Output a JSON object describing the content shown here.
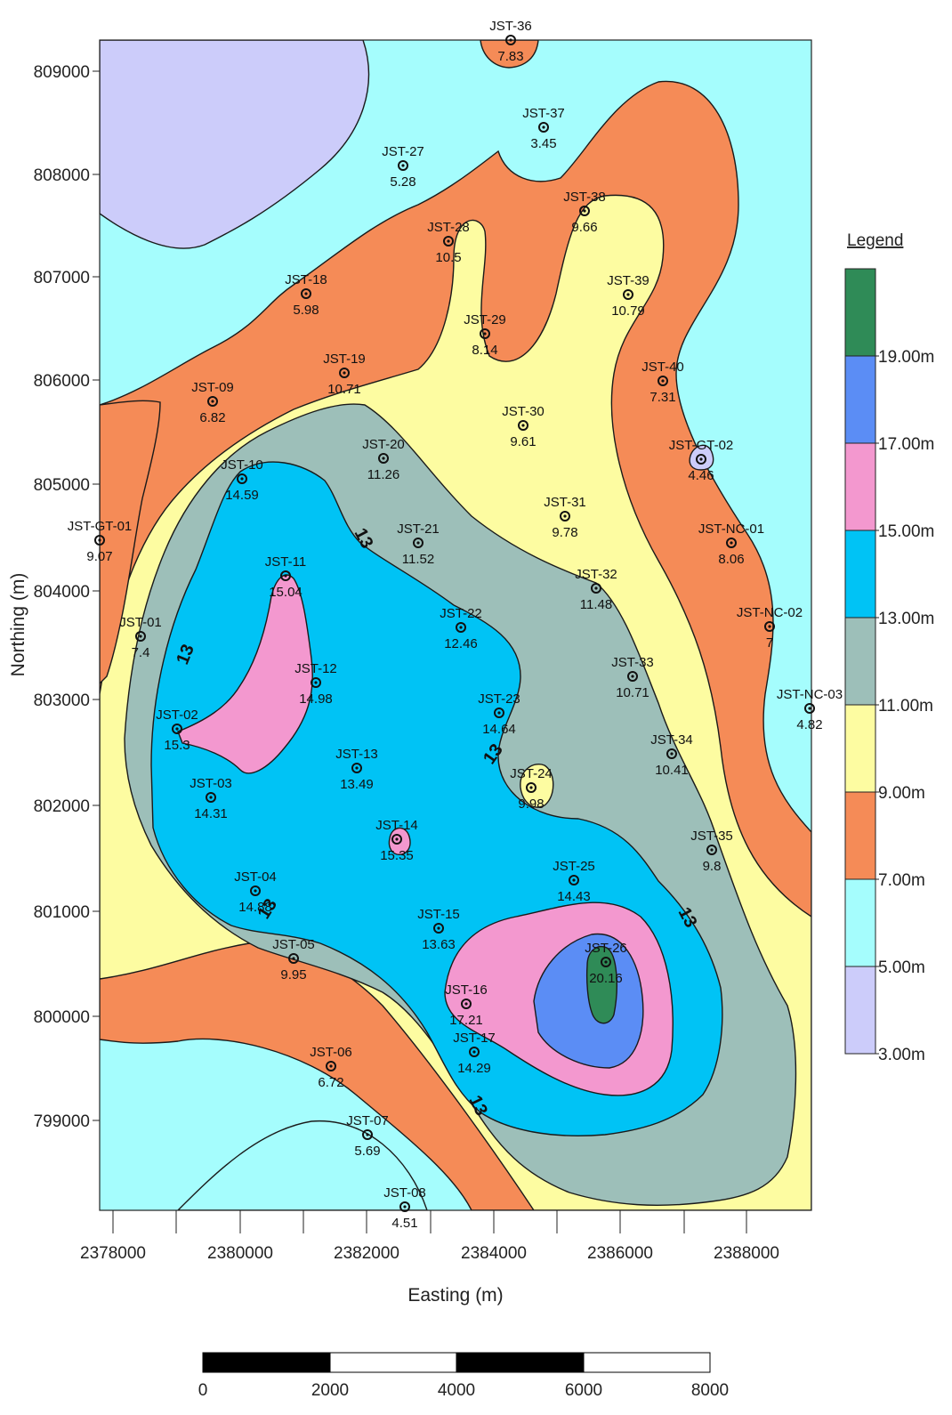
{
  "map": {
    "xlabel": "Easting (m)",
    "ylabel": "Northing (m)",
    "x_ticks": [
      "2378000",
      "2380000",
      "2382000",
      "2384000",
      "2386000",
      "2388000"
    ],
    "y_ticks": [
      "809000",
      "808000",
      "807000",
      "806000",
      "805000",
      "804000",
      "803000",
      "802000",
      "801000",
      "800000",
      "799000"
    ],
    "contour_labels": [
      "13",
      "13",
      "13",
      "13",
      "13",
      "13"
    ]
  },
  "legend": {
    "title": "Legend",
    "levels": [
      "19.00m",
      "17.00m",
      "15.00m",
      "13.00m",
      "11.00m",
      "9.00m",
      "7.00m",
      "5.00m",
      "3.00m"
    ],
    "colors": [
      "#2f8b57",
      "#5b8df5",
      "#f398cf",
      "#00c3f5",
      "#9dbfb9",
      "#fdfca1",
      "#f58b57",
      "#a5fdfd",
      "#ccccfa"
    ]
  },
  "scale_bar": {
    "labels": [
      "0",
      "2000",
      "4000",
      "6000",
      "8000"
    ]
  },
  "wells": [
    {
      "id": "JST-36",
      "value": "7.83"
    },
    {
      "id": "JST-37",
      "value": "3.45"
    },
    {
      "id": "JST-27",
      "value": "5.28"
    },
    {
      "id": "JST-38",
      "value": "9.66"
    },
    {
      "id": "JST-28",
      "value": "10.5"
    },
    {
      "id": "JST-18",
      "value": "5.98"
    },
    {
      "id": "JST-39",
      "value": "10.79"
    },
    {
      "id": "JST-29",
      "value": "8.14"
    },
    {
      "id": "JST-19",
      "value": "10.71"
    },
    {
      "id": "JST-40",
      "value": "7.31"
    },
    {
      "id": "JST-09",
      "value": "6.82"
    },
    {
      "id": "JST-30",
      "value": "9.61"
    },
    {
      "id": "JST-GT-02",
      "value": "4.46"
    },
    {
      "id": "JST-20",
      "value": "11.26"
    },
    {
      "id": "JST-10",
      "value": "14.59"
    },
    {
      "id": "JST-31",
      "value": "9.78"
    },
    {
      "id": "JST-GT-01",
      "value": "9.07"
    },
    {
      "id": "JST-21",
      "value": "11.52"
    },
    {
      "id": "JST-NC-01",
      "value": "8.06"
    },
    {
      "id": "JST-11",
      "value": "15.04"
    },
    {
      "id": "JST-32",
      "value": "11.48"
    },
    {
      "id": "JST-01",
      "value": "7.4"
    },
    {
      "id": "JST-22",
      "value": "12.46"
    },
    {
      "id": "JST-NC-02",
      "value": "7"
    },
    {
      "id": "JST-12",
      "value": "14.98"
    },
    {
      "id": "JST-33",
      "value": "10.71"
    },
    {
      "id": "JST-NC-03",
      "value": "4.82"
    },
    {
      "id": "JST-02",
      "value": "15.3"
    },
    {
      "id": "JST-23",
      "value": "14.64"
    },
    {
      "id": "JST-34",
      "value": "10.41"
    },
    {
      "id": "JST-13",
      "value": "13.49"
    },
    {
      "id": "JST-24",
      "value": "9.98"
    },
    {
      "id": "JST-03",
      "value": "14.31"
    },
    {
      "id": "JST-14",
      "value": "15.35"
    },
    {
      "id": "JST-35",
      "value": "9.8"
    },
    {
      "id": "JST-25",
      "value": "14.43"
    },
    {
      "id": "JST-04",
      "value": "14.88"
    },
    {
      "id": "JST-15",
      "value": "13.63"
    },
    {
      "id": "JST-26",
      "value": "20.16"
    },
    {
      "id": "JST-05",
      "value": "9.95"
    },
    {
      "id": "JST-16",
      "value": "17.21"
    },
    {
      "id": "JST-17",
      "value": "14.29"
    },
    {
      "id": "JST-06",
      "value": "6.72"
    },
    {
      "id": "JST-07",
      "value": "5.69"
    },
    {
      "id": "JST-08",
      "value": "4.51"
    }
  ]
}
